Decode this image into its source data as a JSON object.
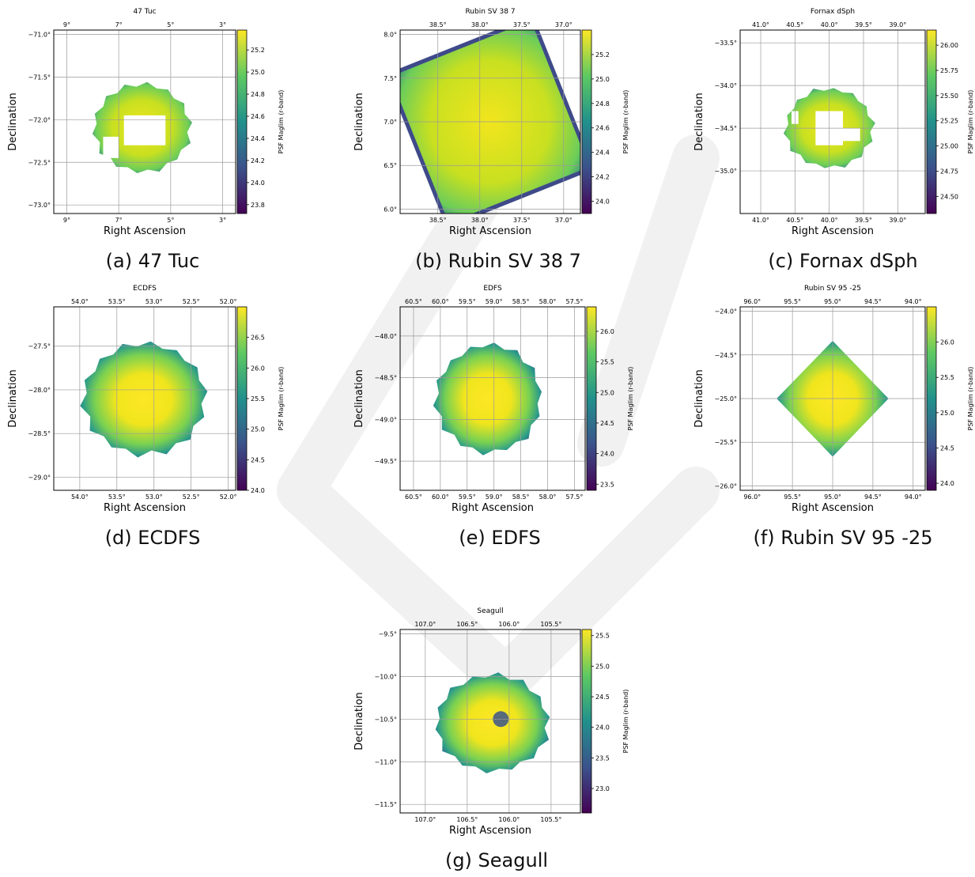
{
  "figure": {
    "panels": [
      {
        "id": "a",
        "caption": "(a) 47 Tuc"
      },
      {
        "id": "b",
        "caption": "(b) Rubin SV 38 7"
      },
      {
        "id": "c",
        "caption": "(c) Fornax dSph"
      },
      {
        "id": "d",
        "caption": "(d) ECDFS"
      },
      {
        "id": "e",
        "caption": "(e) EDFS"
      },
      {
        "id": "f",
        "caption": "(f) Rubin SV 95 -25"
      },
      {
        "id": "g",
        "caption": "(g) Seagull"
      }
    ],
    "colormap": "viridis",
    "colors": {
      "grid": "#9a9a9a",
      "frame": "#000000",
      "watermark": "#f1f1f1"
    }
  },
  "chart_data": [
    {
      "type": "heatmap",
      "title": "47 Tuc",
      "xlabel": "Right Ascension",
      "ylabel": "Declination",
      "cbar_label": "PSF Maglim (r-band)",
      "xticks": [
        "9°",
        "7°",
        "5°",
        "3°"
      ],
      "xtick_values": [
        9,
        7,
        5,
        3
      ],
      "xlim": [
        9.5,
        2.5
      ],
      "yticks": [
        "−71.0°",
        "−71.5°",
        "−72.0°",
        "−72.5°",
        "−73.0°"
      ],
      "ytick_values": [
        -71.0,
        -71.5,
        -72.0,
        -72.5,
        -73.0
      ],
      "ylim": [
        -73.1,
        -70.95
      ],
      "cbar_ticks": [
        "23.8",
        "24.0",
        "24.2",
        "24.4",
        "24.6",
        "24.8",
        "25.0",
        "25.2"
      ],
      "cbar_tick_values": [
        23.8,
        24.0,
        24.2,
        24.4,
        24.6,
        24.8,
        25.0,
        25.2
      ],
      "cbar_range": [
        23.72,
        25.38
      ],
      "footprint": {
        "center": [
          6.1,
          -72.1
        ],
        "shape": "ring",
        "outer_ra_halfwidth": 1.8,
        "outer_dec_halfwidth": 0.5,
        "masked_holes": [
          [
            [
              6.8,
              -71.95
            ],
            [
              5.2,
              -72.3
            ]
          ],
          [
            [
              7.6,
              -72.2
            ],
            [
              7.0,
              -72.45
            ]
          ]
        ]
      }
    },
    {
      "type": "heatmap",
      "title": "Rubin SV 38 7",
      "xlabel": "Right Ascension",
      "ylabel": "Declination",
      "cbar_label": "PSF Maglim (r-band)",
      "xticks": [
        "38.5°",
        "38.0°",
        "37.5°",
        "37.0°"
      ],
      "xtick_values": [
        38.5,
        38.0,
        37.5,
        37.0
      ],
      "xlim": [
        38.95,
        36.8
      ],
      "yticks": [
        "6.0°",
        "6.5°",
        "7.0°",
        "7.5°",
        "8.0°"
      ],
      "ytick_values": [
        6.0,
        6.5,
        7.0,
        7.5,
        8.0
      ],
      "ylim": [
        5.95,
        8.05
      ],
      "cbar_ticks": [
        "24.0",
        "24.2",
        "24.4",
        "24.6",
        "24.8",
        "25.0",
        "25.2"
      ],
      "cbar_tick_values": [
        24.0,
        24.2,
        24.4,
        24.6,
        24.8,
        25.0,
        25.2
      ],
      "cbar_range": [
        23.9,
        25.4
      ],
      "footprint": {
        "center": [
          37.88,
          7.0
        ],
        "shape": "tilted-square",
        "outer_ra_halfwidth": 0.95,
        "outer_dec_halfwidth": 0.95
      }
    },
    {
      "type": "heatmap",
      "title": "Fornax dSph",
      "xlabel": "Right Ascension",
      "ylabel": "Declination",
      "cbar_label": "PSF Maglim (r-band)",
      "xticks": [
        "41.0°",
        "40.5°",
        "40.0°",
        "39.5°",
        "39.0°"
      ],
      "xtick_values": [
        41.0,
        40.5,
        40.0,
        39.5,
        39.0
      ],
      "xlim": [
        41.3,
        38.6
      ],
      "yticks": [
        "−33.5°",
        "−34.0°",
        "−34.5°",
        "−35.0°"
      ],
      "ytick_values": [
        -33.5,
        -34.0,
        -34.5,
        -35.0
      ],
      "ylim": [
        -35.5,
        -33.35
      ],
      "cbar_ticks": [
        "24.50",
        "24.75",
        "25.00",
        "25.25",
        "25.50",
        "25.75",
        "26.00"
      ],
      "cbar_tick_values": [
        24.5,
        24.75,
        25.0,
        25.25,
        25.5,
        25.75,
        26.0
      ],
      "cbar_range": [
        24.33,
        26.15
      ],
      "footprint": {
        "center": [
          40.0,
          -34.5
        ],
        "shape": "ring",
        "outer_ra_halfwidth": 0.62,
        "outer_dec_halfwidth": 0.45,
        "masked_holes": [
          [
            [
              40.2,
              -34.3
            ],
            [
              39.8,
              -34.7
            ]
          ],
          [
            [
              39.95,
              -34.5
            ],
            [
              39.55,
              -34.65
            ]
          ],
          [
            [
              40.55,
              -34.3
            ],
            [
              40.45,
              -34.45
            ]
          ]
        ]
      }
    },
    {
      "type": "heatmap",
      "title": "ECDFS",
      "xlabel": "Right Ascension",
      "ylabel": "Declination",
      "cbar_label": "PSF Maglim (r-band)",
      "xticks": [
        "54.0°",
        "53.5°",
        "53.0°",
        "52.5°",
        "52.0°"
      ],
      "xtick_values": [
        54.0,
        53.5,
        53.0,
        52.5,
        52.0
      ],
      "xlim": [
        54.35,
        51.9
      ],
      "yticks": [
        "−27.5°",
        "−28.0°",
        "−28.5°",
        "−29.0°"
      ],
      "ytick_values": [
        -27.5,
        -28.0,
        -28.5,
        -29.0
      ],
      "ylim": [
        -29.15,
        -27.05
      ],
      "cbar_ticks": [
        "24.0",
        "24.5",
        "25.0",
        "25.5",
        "26.0",
        "26.5"
      ],
      "cbar_tick_values": [
        24.0,
        24.5,
        25.0,
        25.5,
        26.0,
        26.5
      ],
      "cbar_range": [
        24.0,
        27.0
      ],
      "footprint": {
        "center": [
          53.13,
          -28.1
        ],
        "shape": "disk",
        "outer_ra_halfwidth": 0.8,
        "outer_dec_halfwidth": 0.62
      }
    },
    {
      "type": "heatmap",
      "title": "EDFS",
      "xlabel": "Right Ascension",
      "ylabel": "Declination",
      "cbar_label": "PSF Maglim (r-band)",
      "xticks": [
        "60.5°",
        "60.0°",
        "59.5°",
        "59.0°",
        "58.5°",
        "58.0°",
        "57.5°"
      ],
      "xtick_values": [
        60.5,
        60.0,
        59.5,
        59.0,
        58.5,
        58.0,
        57.5
      ],
      "xlim": [
        60.75,
        57.3
      ],
      "yticks": [
        "−48.0°",
        "−48.5°",
        "−49.0°",
        "−49.5°"
      ],
      "ytick_values": [
        -48.0,
        -48.5,
        -49.0,
        -49.5
      ],
      "ylim": [
        -49.85,
        -47.65
      ],
      "cbar_ticks": [
        "23.5",
        "24.0",
        "24.5",
        "25.0",
        "25.5",
        "26.0"
      ],
      "cbar_tick_values": [
        23.5,
        24.0,
        24.5,
        25.0,
        25.5,
        26.0
      ],
      "cbar_range": [
        23.4,
        26.4
      ],
      "footprint": {
        "center": [
          59.1,
          -48.75
        ],
        "shape": "disk",
        "outer_ra_halfwidth": 0.95,
        "outer_dec_halfwidth": 0.63
      }
    },
    {
      "type": "heatmap",
      "title": "Rubin SV 95 -25",
      "xlabel": "Right Ascension",
      "ylabel": "Declination",
      "cbar_label": "PSF Maglim (r-band)",
      "xticks": [
        "96.0°",
        "95.5°",
        "95.0°",
        "94.5°",
        "94.0°"
      ],
      "xtick_values": [
        96.0,
        95.5,
        95.0,
        94.5,
        94.0
      ],
      "xlim": [
        96.15,
        93.85
      ],
      "yticks": [
        "−24.0°",
        "−24.5°",
        "−25.0°",
        "−25.5°",
        "−26.0°"
      ],
      "ytick_values": [
        -24.0,
        -24.5,
        -25.0,
        -25.5,
        -26.0
      ],
      "ylim": [
        -26.05,
        -23.95
      ],
      "cbar_ticks": [
        "24.0",
        "24.5",
        "25.0",
        "25.5",
        "26.0"
      ],
      "cbar_tick_values": [
        24.0,
        24.5,
        25.0,
        25.5,
        26.0
      ],
      "cbar_range": [
        23.9,
        26.5
      ],
      "footprint": {
        "center": [
          95.0,
          -25.0
        ],
        "shape": "diamond",
        "outer_ra_halfwidth": 0.7,
        "outer_dec_halfwidth": 0.65
      }
    },
    {
      "type": "heatmap",
      "title": "Seagull",
      "xlabel": "Right Ascension",
      "ylabel": "Declination",
      "cbar_label": "PSF Maglim (r-band)",
      "xticks": [
        "107.0°",
        "106.5°",
        "106.0°",
        "105.5°"
      ],
      "xtick_values": [
        107.0,
        106.5,
        106.0,
        105.5
      ],
      "xlim": [
        107.3,
        105.15
      ],
      "yticks": [
        "−9.5°",
        "−10.0°",
        "−10.5°",
        "−11.0°",
        "−11.5°"
      ],
      "ytick_values": [
        -9.5,
        -10.0,
        -10.5,
        -11.0,
        -11.5
      ],
      "ylim": [
        -11.6,
        -9.45
      ],
      "cbar_ticks": [
        "23.0",
        "23.5",
        "24.0",
        "24.5",
        "25.0",
        "25.5"
      ],
      "cbar_tick_values": [
        23.0,
        23.5,
        24.0,
        24.5,
        25.0,
        25.5
      ],
      "cbar_range": [
        22.6,
        25.6
      ],
      "footprint": {
        "center": [
          106.2,
          -10.55
        ],
        "shape": "disk",
        "outer_ra_halfwidth": 0.65,
        "outer_dec_halfwidth": 0.55,
        "central_dip": [
          106.1,
          -10.5
        ]
      }
    }
  ]
}
